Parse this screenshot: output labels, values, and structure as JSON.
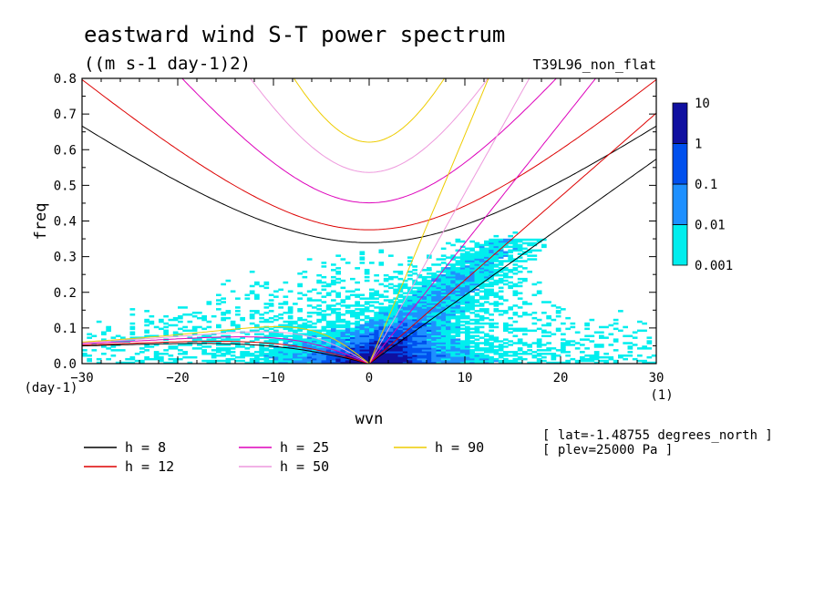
{
  "chart_data": {
    "type": "heatmap",
    "title": "eastward wind S-T power spectrum",
    "subtitle": "((m s-1 day-1)2)",
    "label_right": "T39L96_non_flat",
    "xlabel": "wvn",
    "ylabel": "freq",
    "x_unit": "(1)",
    "y_unit": "(day-1)",
    "xlim": [
      -30,
      30
    ],
    "ylim": [
      0,
      0.8
    ],
    "xticks": [
      -30,
      -20,
      -10,
      0,
      10,
      20,
      30
    ],
    "xtick_labels": [
      "−30",
      "−20",
      "−10",
      "0",
      "10",
      "20",
      "30"
    ],
    "yticks": [
      0,
      0.1,
      0.2,
      0.3,
      0.4,
      0.5,
      0.6,
      0.7,
      0.8
    ],
    "ytick_labels": [
      "0.0",
      "0.1",
      "0.2",
      "0.3",
      "0.4",
      "0.5",
      "0.6",
      "0.7",
      "0.8"
    ],
    "colorbar": {
      "levels": [
        0.001,
        0.01,
        0.1,
        1,
        10
      ],
      "labels": [
        "0.001",
        "0.01",
        "0.1",
        "1",
        "10"
      ],
      "colors": [
        "#00eeee",
        "#1e90ff",
        "#0050ee",
        "#1010a0"
      ]
    },
    "annotations": [
      "[ lat=-1.48755 degrees_north ]",
      "[ plev=25000 Pa ]"
    ],
    "legend": [
      {
        "label": "h =  8",
        "color": "#000000"
      },
      {
        "label": "h = 12",
        "color": "#dd0000"
      },
      {
        "label": "h = 25",
        "color": "#dd00bb"
      },
      {
        "label": "h = 50",
        "color": "#ee99dd"
      },
      {
        "label": "h = 90",
        "color": "#eecc00"
      }
    ],
    "dispersion_curves": [
      {
        "name": "h =  8",
        "color": "#000000",
        "equivalent_depth": 8
      },
      {
        "name": "h = 12",
        "color": "#dd0000",
        "equivalent_depth": 12
      },
      {
        "name": "h = 25",
        "color": "#dd00bb",
        "equivalent_depth": 25
      },
      {
        "name": "h = 50",
        "color": "#ee99dd",
        "equivalent_depth": 50
      },
      {
        "name": "h = 90",
        "color": "#eecc00",
        "equivalent_depth": 90
      }
    ]
  }
}
